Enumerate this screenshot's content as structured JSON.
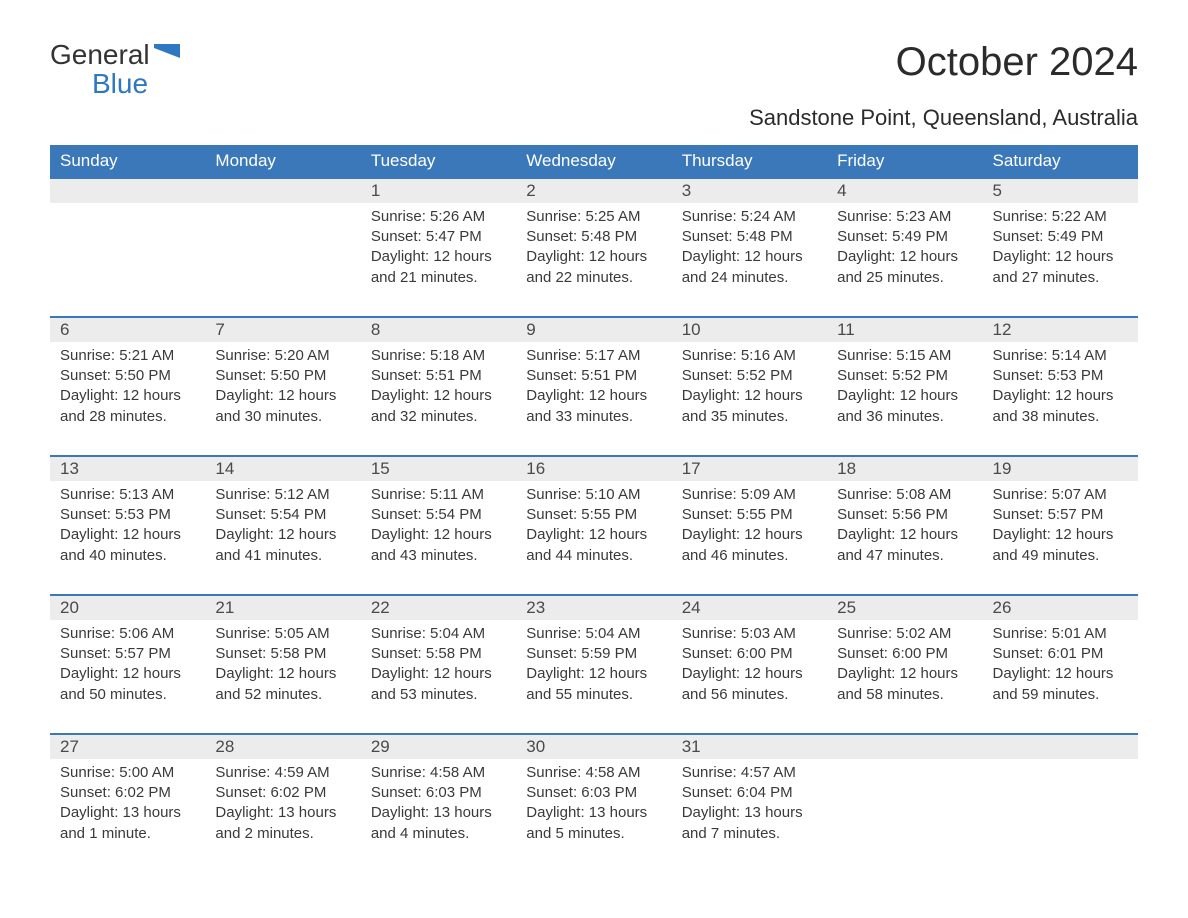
{
  "brand": {
    "word1": "General",
    "word2": "Blue",
    "logo_color": "#2e78c2",
    "text_color": "#333333"
  },
  "title": "October 2024",
  "subtitle": "Sandstone Point, Queensland, Australia",
  "colors": {
    "header_bg": "#3a78b9",
    "header_text": "#ffffff",
    "daynum_bg": "#ececec",
    "daynum_text": "#4a4a4a",
    "body_text": "#3a3a3a",
    "row_divider": "#3a78b9",
    "page_bg": "#ffffff"
  },
  "typography": {
    "title_fontsize": 40,
    "subtitle_fontsize": 22,
    "header_fontsize": 17,
    "body_fontsize": 15
  },
  "days_of_week": [
    "Sunday",
    "Monday",
    "Tuesday",
    "Wednesday",
    "Thursday",
    "Friday",
    "Saturday"
  ],
  "weeks": [
    [
      null,
      null,
      {
        "n": "1",
        "sunrise": "Sunrise: 5:26 AM",
        "sunset": "Sunset: 5:47 PM",
        "dl1": "Daylight: 12 hours",
        "dl2": "and 21 minutes."
      },
      {
        "n": "2",
        "sunrise": "Sunrise: 5:25 AM",
        "sunset": "Sunset: 5:48 PM",
        "dl1": "Daylight: 12 hours",
        "dl2": "and 22 minutes."
      },
      {
        "n": "3",
        "sunrise": "Sunrise: 5:24 AM",
        "sunset": "Sunset: 5:48 PM",
        "dl1": "Daylight: 12 hours",
        "dl2": "and 24 minutes."
      },
      {
        "n": "4",
        "sunrise": "Sunrise: 5:23 AM",
        "sunset": "Sunset: 5:49 PM",
        "dl1": "Daylight: 12 hours",
        "dl2": "and 25 minutes."
      },
      {
        "n": "5",
        "sunrise": "Sunrise: 5:22 AM",
        "sunset": "Sunset: 5:49 PM",
        "dl1": "Daylight: 12 hours",
        "dl2": "and 27 minutes."
      }
    ],
    [
      {
        "n": "6",
        "sunrise": "Sunrise: 5:21 AM",
        "sunset": "Sunset: 5:50 PM",
        "dl1": "Daylight: 12 hours",
        "dl2": "and 28 minutes."
      },
      {
        "n": "7",
        "sunrise": "Sunrise: 5:20 AM",
        "sunset": "Sunset: 5:50 PM",
        "dl1": "Daylight: 12 hours",
        "dl2": "and 30 minutes."
      },
      {
        "n": "8",
        "sunrise": "Sunrise: 5:18 AM",
        "sunset": "Sunset: 5:51 PM",
        "dl1": "Daylight: 12 hours",
        "dl2": "and 32 minutes."
      },
      {
        "n": "9",
        "sunrise": "Sunrise: 5:17 AM",
        "sunset": "Sunset: 5:51 PM",
        "dl1": "Daylight: 12 hours",
        "dl2": "and 33 minutes."
      },
      {
        "n": "10",
        "sunrise": "Sunrise: 5:16 AM",
        "sunset": "Sunset: 5:52 PM",
        "dl1": "Daylight: 12 hours",
        "dl2": "and 35 minutes."
      },
      {
        "n": "11",
        "sunrise": "Sunrise: 5:15 AM",
        "sunset": "Sunset: 5:52 PM",
        "dl1": "Daylight: 12 hours",
        "dl2": "and 36 minutes."
      },
      {
        "n": "12",
        "sunrise": "Sunrise: 5:14 AM",
        "sunset": "Sunset: 5:53 PM",
        "dl1": "Daylight: 12 hours",
        "dl2": "and 38 minutes."
      }
    ],
    [
      {
        "n": "13",
        "sunrise": "Sunrise: 5:13 AM",
        "sunset": "Sunset: 5:53 PM",
        "dl1": "Daylight: 12 hours",
        "dl2": "and 40 minutes."
      },
      {
        "n": "14",
        "sunrise": "Sunrise: 5:12 AM",
        "sunset": "Sunset: 5:54 PM",
        "dl1": "Daylight: 12 hours",
        "dl2": "and 41 minutes."
      },
      {
        "n": "15",
        "sunrise": "Sunrise: 5:11 AM",
        "sunset": "Sunset: 5:54 PM",
        "dl1": "Daylight: 12 hours",
        "dl2": "and 43 minutes."
      },
      {
        "n": "16",
        "sunrise": "Sunrise: 5:10 AM",
        "sunset": "Sunset: 5:55 PM",
        "dl1": "Daylight: 12 hours",
        "dl2": "and 44 minutes."
      },
      {
        "n": "17",
        "sunrise": "Sunrise: 5:09 AM",
        "sunset": "Sunset: 5:55 PM",
        "dl1": "Daylight: 12 hours",
        "dl2": "and 46 minutes."
      },
      {
        "n": "18",
        "sunrise": "Sunrise: 5:08 AM",
        "sunset": "Sunset: 5:56 PM",
        "dl1": "Daylight: 12 hours",
        "dl2": "and 47 minutes."
      },
      {
        "n": "19",
        "sunrise": "Sunrise: 5:07 AM",
        "sunset": "Sunset: 5:57 PM",
        "dl1": "Daylight: 12 hours",
        "dl2": "and 49 minutes."
      }
    ],
    [
      {
        "n": "20",
        "sunrise": "Sunrise: 5:06 AM",
        "sunset": "Sunset: 5:57 PM",
        "dl1": "Daylight: 12 hours",
        "dl2": "and 50 minutes."
      },
      {
        "n": "21",
        "sunrise": "Sunrise: 5:05 AM",
        "sunset": "Sunset: 5:58 PM",
        "dl1": "Daylight: 12 hours",
        "dl2": "and 52 minutes."
      },
      {
        "n": "22",
        "sunrise": "Sunrise: 5:04 AM",
        "sunset": "Sunset: 5:58 PM",
        "dl1": "Daylight: 12 hours",
        "dl2": "and 53 minutes."
      },
      {
        "n": "23",
        "sunrise": "Sunrise: 5:04 AM",
        "sunset": "Sunset: 5:59 PM",
        "dl1": "Daylight: 12 hours",
        "dl2": "and 55 minutes."
      },
      {
        "n": "24",
        "sunrise": "Sunrise: 5:03 AM",
        "sunset": "Sunset: 6:00 PM",
        "dl1": "Daylight: 12 hours",
        "dl2": "and 56 minutes."
      },
      {
        "n": "25",
        "sunrise": "Sunrise: 5:02 AM",
        "sunset": "Sunset: 6:00 PM",
        "dl1": "Daylight: 12 hours",
        "dl2": "and 58 minutes."
      },
      {
        "n": "26",
        "sunrise": "Sunrise: 5:01 AM",
        "sunset": "Sunset: 6:01 PM",
        "dl1": "Daylight: 12 hours",
        "dl2": "and 59 minutes."
      }
    ],
    [
      {
        "n": "27",
        "sunrise": "Sunrise: 5:00 AM",
        "sunset": "Sunset: 6:02 PM",
        "dl1": "Daylight: 13 hours",
        "dl2": "and 1 minute."
      },
      {
        "n": "28",
        "sunrise": "Sunrise: 4:59 AM",
        "sunset": "Sunset: 6:02 PM",
        "dl1": "Daylight: 13 hours",
        "dl2": "and 2 minutes."
      },
      {
        "n": "29",
        "sunrise": "Sunrise: 4:58 AM",
        "sunset": "Sunset: 6:03 PM",
        "dl1": "Daylight: 13 hours",
        "dl2": "and 4 minutes."
      },
      {
        "n": "30",
        "sunrise": "Sunrise: 4:58 AM",
        "sunset": "Sunset: 6:03 PM",
        "dl1": "Daylight: 13 hours",
        "dl2": "and 5 minutes."
      },
      {
        "n": "31",
        "sunrise": "Sunrise: 4:57 AM",
        "sunset": "Sunset: 6:04 PM",
        "dl1": "Daylight: 13 hours",
        "dl2": "and 7 minutes."
      },
      null,
      null
    ]
  ]
}
